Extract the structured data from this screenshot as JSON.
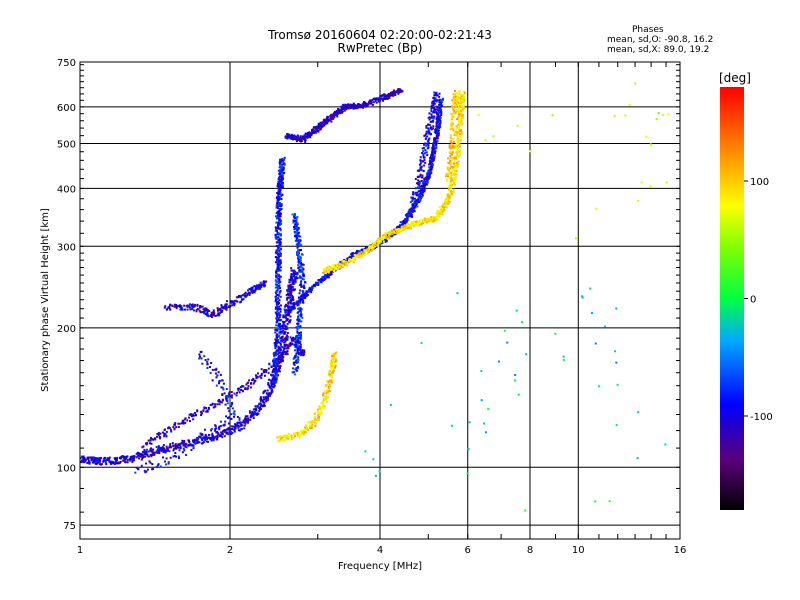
{
  "header": {
    "title_line1": "Tromsø 20160604 02:20:00-02:21:43",
    "title_line2": "RwPretec (Bp)",
    "phase_title": "Phases",
    "phase_o": "mean, sd,O: -90.8, 16.2",
    "phase_x": "mean, sd,X:  89.0, 19.2"
  },
  "chart_data": {
    "type": "scatter",
    "xlabel": "Frequency [MHz]",
    "ylabel": "Stationary phase Virtual Height [km]",
    "xscale": "log",
    "yscale": "log",
    "xlim": [
      1,
      16
    ],
    "ylim": [
      70,
      750
    ],
    "x_ticks": [
      1,
      2,
      4,
      6,
      8,
      10,
      16
    ],
    "x_tick_labels": [
      "1",
      "2",
      "4",
      "6",
      "8",
      "10",
      "16"
    ],
    "y_ticks": [
      75,
      100,
      200,
      300,
      400,
      500,
      600,
      750
    ],
    "y_tick_labels": [
      "75",
      "100",
      "200",
      "300",
      "400",
      "500",
      "600",
      "750"
    ],
    "grid": true,
    "colorbar": {
      "label": "[deg]",
      "range": [
        -180,
        180
      ],
      "ticks": [
        100,
        0,
        -100
      ],
      "tick_labels": [
        "100",
        "0",
        "-100"
      ]
    },
    "traces": [
      {
        "name": "O-lower",
        "phase": -105,
        "jitter": 0.035,
        "density": 5,
        "points": [
          [
            1,
            104
          ],
          [
            1.1,
            103
          ],
          [
            1.25,
            104
          ],
          [
            1.4,
            108
          ],
          [
            1.6,
            112
          ],
          [
            1.85,
            116
          ],
          [
            2.1,
            123
          ],
          [
            2.3,
            135
          ],
          [
            2.45,
            155
          ],
          [
            2.55,
            180
          ],
          [
            2.6,
            210
          ],
          [
            2.65,
            240
          ],
          [
            2.7,
            265
          ]
        ]
      },
      {
        "name": "O-lower-upper-branch",
        "phase": -110,
        "jitter": 0.03,
        "density": 4,
        "points": [
          [
            1.35,
            112
          ],
          [
            1.6,
            125
          ],
          [
            1.9,
            138
          ],
          [
            2.2,
            152
          ],
          [
            2.5,
            170
          ],
          [
            2.7,
            190
          ],
          [
            2.8,
            175
          ]
        ]
      },
      {
        "name": "O-cusp-column",
        "phase": -90,
        "jitter": 0.025,
        "density": 6,
        "points": [
          [
            2.45,
            150
          ],
          [
            2.5,
            200
          ],
          [
            2.5,
            260
          ],
          [
            2.5,
            330
          ],
          [
            2.52,
            400
          ],
          [
            2.55,
            460
          ]
        ]
      },
      {
        "name": "O-cusp-column-b",
        "phase": -80,
        "jitter": 0.025,
        "density": 5,
        "points": [
          [
            2.7,
            160
          ],
          [
            2.75,
            200
          ],
          [
            2.8,
            250
          ],
          [
            2.75,
            300
          ],
          [
            2.7,
            350
          ]
        ]
      },
      {
        "name": "O-F1",
        "phase": -95,
        "jitter": 0.02,
        "density": 6,
        "points": [
          [
            2.6,
            215
          ],
          [
            3,
            250
          ],
          [
            3.5,
            285
          ],
          [
            4,
            305
          ],
          [
            4.4,
            330
          ],
          [
            4.8,
            380
          ],
          [
            5.05,
            440
          ],
          [
            5.2,
            520
          ],
          [
            5.3,
            620
          ]
        ]
      },
      {
        "name": "O-F1-b",
        "phase": -100,
        "jitter": 0.03,
        "density": 4,
        "points": [
          [
            4.6,
            350
          ],
          [
            4.8,
            420
          ],
          [
            4.95,
            500
          ],
          [
            5.1,
            580
          ],
          [
            5.2,
            640
          ]
        ]
      },
      {
        "name": "O-spread-upper",
        "phase": -110,
        "jitter": 0.025,
        "density": 5,
        "points": [
          [
            2.6,
            520
          ],
          [
            2.8,
            510
          ],
          [
            3.0,
            540
          ],
          [
            3.2,
            570
          ],
          [
            3.4,
            600
          ],
          [
            3.7,
            605
          ],
          [
            4.1,
            630
          ],
          [
            4.4,
            650
          ]
        ]
      },
      {
        "name": "O-mid-band",
        "phase": -105,
        "jitter": 0.03,
        "density": 4,
        "points": [
          [
            1.5,
            222
          ],
          [
            1.7,
            222
          ],
          [
            1.85,
            213
          ],
          [
            2.0,
            225
          ],
          [
            2.2,
            240
          ],
          [
            2.35,
            250
          ]
        ]
      },
      {
        "name": "O-low-scatter",
        "phase": -95,
        "jitter": 0.04,
        "density": 3,
        "points": [
          [
            1.3,
            98
          ],
          [
            1.55,
            105
          ],
          [
            1.85,
            120
          ],
          [
            2.05,
            130
          ],
          [
            1.9,
            155
          ],
          [
            1.75,
            175
          ]
        ]
      },
      {
        "name": "X-lower",
        "phase": 95,
        "jitter": 0.03,
        "density": 4,
        "points": [
          [
            2.5,
            115
          ],
          [
            2.75,
            118
          ],
          [
            2.95,
            125
          ],
          [
            3.1,
            140
          ],
          [
            3.2,
            160
          ],
          [
            3.25,
            175
          ]
        ]
      },
      {
        "name": "X-F1",
        "phase": 90,
        "jitter": 0.025,
        "density": 5,
        "points": [
          [
            3.1,
            265
          ],
          [
            3.4,
            275
          ],
          [
            3.8,
            295
          ],
          [
            4.2,
            320
          ],
          [
            4.7,
            335
          ],
          [
            5.2,
            345
          ],
          [
            5.5,
            380
          ],
          [
            5.7,
            450
          ],
          [
            5.8,
            560
          ],
          [
            5.85,
            640
          ]
        ]
      },
      {
        "name": "X-F1-b",
        "phase": 100,
        "jitter": 0.03,
        "density": 4,
        "points": [
          [
            5.5,
            420
          ],
          [
            5.6,
            500
          ],
          [
            5.65,
            600
          ],
          [
            5.7,
            640
          ]
        ]
      },
      {
        "name": "sparse-high",
        "phase": 60,
        "jitter": 0.2,
        "density": 1,
        "points": [
          [
            6.9,
            590
          ],
          [
            7.0,
            500
          ],
          [
            11.1,
            600
          ],
          [
            14,
            640
          ],
          [
            14,
            550
          ],
          [
            14,
            470
          ],
          [
            14,
            420
          ],
          [
            10.8,
            290
          ]
        ]
      },
      {
        "name": "sparse-mid",
        "phase": -20,
        "jitter": 0.2,
        "density": 1,
        "points": [
          [
            5.9,
            135
          ],
          [
            5.95,
            105
          ],
          [
            6.8,
            165
          ],
          [
            6.9,
            130
          ],
          [
            7.0,
            195
          ],
          [
            8.2,
            220
          ],
          [
            8.5,
            170
          ],
          [
            10.7,
            235
          ],
          [
            10.8,
            220
          ],
          [
            10.9,
            175
          ],
          [
            11,
            160
          ],
          [
            14.1,
            105
          ],
          [
            10.8,
            82
          ],
          [
            3.9,
            103
          ],
          [
            3.7,
            107
          ],
          [
            5.3,
            245
          ]
        ]
      }
    ]
  }
}
